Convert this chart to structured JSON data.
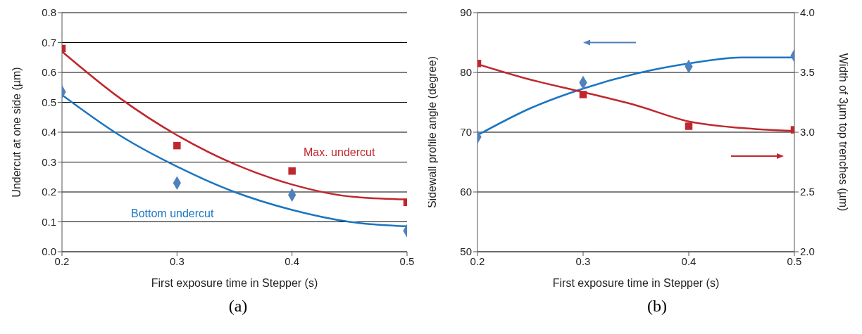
{
  "chart_data": [
    {
      "type": "scatter",
      "xlabel": "First exposure time in Stepper (s)",
      "ylabel": "Undercut at one side (µm)",
      "xlim": [
        0.2,
        0.5
      ],
      "xticks": [
        0.2,
        0.3,
        0.4,
        0.5
      ],
      "ylim": [
        0,
        0.8
      ],
      "yticks": [
        {
          "value": 0,
          "label": "0.0"
        },
        0.1,
        0.2,
        0.3,
        0.4,
        0.5,
        0.6,
        0.7,
        0.8
      ],
      "grid": "y",
      "series": [
        {
          "marker": "square",
          "color": "#c0272d",
          "x": [
            0.2,
            0.3,
            0.4,
            0.5
          ],
          "values": [
            0.68,
            0.355,
            0.27,
            0.165
          ]
        },
        {
          "type": "line",
          "name": "Max. undercut",
          "marker": "none",
          "color": "#c0272d",
          "x": [
            0.2,
            0.25,
            0.3,
            0.35,
            0.4,
            0.45,
            0.5
          ],
          "values": [
            0.67,
            0.515,
            0.39,
            0.293,
            0.225,
            0.185,
            0.175
          ]
        },
        {
          "marker": "diamond",
          "color": "#4f81bd",
          "x": [
            0.2,
            0.3,
            0.4,
            0.5
          ],
          "values": [
            0.535,
            0.23,
            0.19,
            0.07
          ]
        },
        {
          "type": "line",
          "name": "Bottom undercut",
          "marker": "none",
          "color": "#1a75c2",
          "x": [
            0.2,
            0.25,
            0.3,
            0.35,
            0.4,
            0.45,
            0.5
          ],
          "values": [
            0.525,
            0.39,
            0.285,
            0.2,
            0.14,
            0.1,
            0.085
          ]
        }
      ],
      "annotations": [
        "(a)"
      ]
    },
    {
      "type": "scatter",
      "xlabel": "First exposure time in Stepper (s)",
      "ylabel": "Sidewall profile angle (degree)",
      "y2label": "Width of 3µm top trenches (µm)",
      "xlim": [
        0.2,
        0.5
      ],
      "xticks": [
        0.2,
        0.3,
        0.4,
        0.5
      ],
      "ylim": [
        50,
        90
      ],
      "yticks": [
        50,
        60,
        70,
        80,
        90
      ],
      "y2lim": [
        2,
        4
      ],
      "y2ticks": [
        {
          "value": 2,
          "label": "2.0"
        },
        2.5,
        {
          "value": 3,
          "label": "3.0"
        },
        3.5,
        {
          "value": 4,
          "label": "4.0"
        }
      ],
      "grid": "y",
      "series": [
        {
          "marker": "diamond",
          "color": "#4f81bd",
          "x": [
            0.2,
            0.3,
            0.4,
            0.5
          ],
          "values": [
            69.2,
            78.3,
            81,
            82.8
          ]
        },
        {
          "type": "line",
          "marker": "none",
          "color": "#1a75c2",
          "x": [
            0.2,
            0.25,
            0.3,
            0.35,
            0.4,
            0.45,
            0.5
          ],
          "values": [
            69.5,
            74,
            77.3,
            79.8,
            81.5,
            82.5,
            82.5
          ]
        },
        {
          "axis": "y2",
          "marker": "square",
          "color": "#c0272d",
          "x": [
            0.2,
            0.3,
            0.4,
            0.5
          ],
          "values": [
            3.575,
            3.315,
            3.05,
            3.02
          ]
        },
        {
          "type": "line",
          "axis": "y2",
          "marker": "none",
          "color": "#c0272d",
          "x": [
            0.2,
            0.25,
            0.3,
            0.35,
            0.4,
            0.45,
            0.5
          ],
          "values": [
            3.57,
            3.44,
            3.335,
            3.225,
            3.09,
            3.035,
            3.01
          ]
        }
      ],
      "annotations": [
        "(b)"
      ]
    }
  ]
}
